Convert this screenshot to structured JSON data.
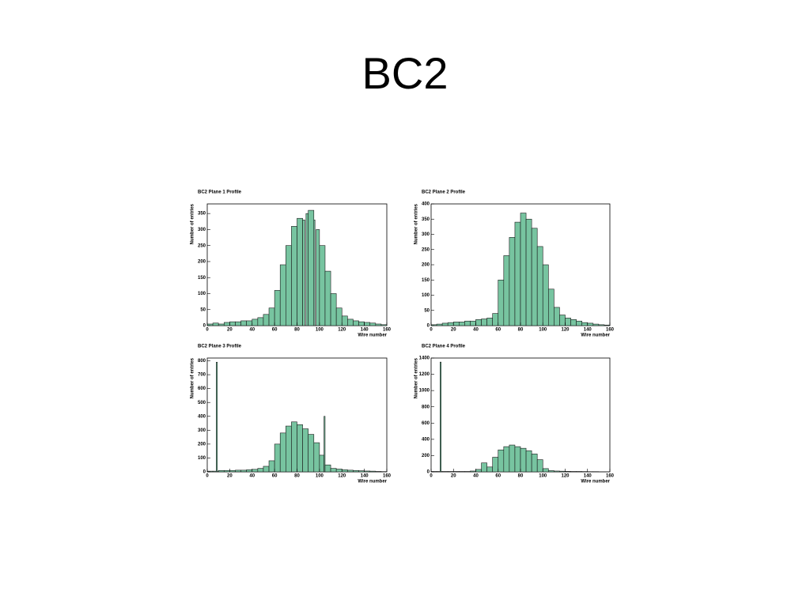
{
  "title": "BC2",
  "chart_data": [
    {
      "type": "histogram",
      "title": "BC2 Plane 1 Profile",
      "x_label": "Wire number",
      "y_label": "Number of entries",
      "color": "#77c4a0",
      "bins": [
        0,
        5,
        10,
        15,
        20,
        25,
        30,
        35,
        40,
        45,
        50,
        55,
        60,
        65,
        70,
        75,
        80,
        85,
        87,
        88,
        90,
        95,
        96,
        97,
        100,
        105,
        110,
        115,
        120,
        125,
        130,
        135,
        140,
        145,
        150,
        155,
        160
      ],
      "values": [
        5,
        8,
        5,
        10,
        12,
        12,
        15,
        15,
        20,
        25,
        35,
        55,
        110,
        190,
        250,
        310,
        335,
        330,
        0,
        350,
        360,
        330,
        0,
        300,
        250,
        170,
        100,
        55,
        30,
        20,
        15,
        12,
        10,
        8,
        5,
        3
      ],
      "xlim": [
        0,
        160
      ],
      "ylim": [
        0,
        380
      ],
      "xticks": [
        0,
        20,
        40,
        60,
        80,
        100,
        120,
        140,
        160
      ],
      "yticks": [
        0,
        50,
        100,
        150,
        200,
        250,
        300,
        350
      ]
    },
    {
      "type": "histogram",
      "title": "BC2 Plane 2 Profile",
      "x_label": "Wire number",
      "y_label": "Number of entries",
      "color": "#77c4a0",
      "bins": [
        0,
        5,
        10,
        15,
        20,
        25,
        30,
        35,
        40,
        45,
        50,
        55,
        60,
        65,
        70,
        75,
        80,
        85,
        90,
        95,
        100,
        105,
        110,
        115,
        120,
        125,
        130,
        135,
        140,
        145,
        150,
        155,
        160
      ],
      "values": [
        3,
        5,
        8,
        10,
        12,
        12,
        15,
        15,
        20,
        22,
        25,
        40,
        150,
        230,
        290,
        340,
        370,
        350,
        320,
        260,
        200,
        120,
        60,
        35,
        25,
        20,
        15,
        10,
        8,
        5,
        3,
        2
      ],
      "xlim": [
        0,
        160
      ],
      "ylim": [
        0,
        400
      ],
      "xticks": [
        0,
        20,
        40,
        60,
        80,
        100,
        120,
        140,
        160
      ],
      "yticks": [
        0,
        50,
        100,
        150,
        200,
        250,
        300,
        350,
        400
      ]
    },
    {
      "type": "histogram",
      "title": "BC2 Plane 3 Profile",
      "x_label": "Wire number",
      "y_label": "Number of entries",
      "color": "#77c4a0",
      "bins": [
        0,
        5,
        8,
        9,
        10,
        15,
        20,
        25,
        30,
        35,
        40,
        45,
        50,
        55,
        60,
        65,
        70,
        75,
        80,
        85,
        90,
        95,
        100,
        104,
        105,
        110,
        115,
        120,
        125,
        130,
        135,
        140,
        145,
        150,
        155,
        160
      ],
      "values": [
        5,
        5,
        790,
        5,
        10,
        10,
        10,
        12,
        12,
        15,
        18,
        25,
        40,
        80,
        200,
        280,
        330,
        360,
        340,
        310,
        270,
        210,
        120,
        400,
        50,
        25,
        20,
        15,
        12,
        10,
        8,
        6,
        5,
        3,
        2
      ],
      "xlim": [
        0,
        160
      ],
      "ylim": [
        0,
        820
      ],
      "xticks": [
        0,
        20,
        40,
        60,
        80,
        100,
        120,
        140,
        160
      ],
      "yticks": [
        0,
        100,
        200,
        300,
        400,
        500,
        600,
        700,
        800
      ]
    },
    {
      "type": "histogram",
      "title": "BC2 Plane 4 Profile",
      "x_label": "Wire number",
      "y_label": "Number of entries",
      "color": "#77c4a0",
      "bins": [
        0,
        5,
        8,
        9,
        10,
        15,
        20,
        25,
        30,
        35,
        40,
        45,
        50,
        55,
        60,
        65,
        70,
        75,
        80,
        85,
        90,
        95,
        100,
        105,
        110,
        115,
        120,
        125,
        130,
        135,
        140,
        145,
        150,
        155,
        160
      ],
      "values": [
        5,
        5,
        1350,
        5,
        5,
        5,
        5,
        5,
        5,
        10,
        30,
        110,
        60,
        180,
        270,
        310,
        330,
        310,
        290,
        260,
        220,
        150,
        40,
        15,
        10,
        8,
        6,
        5,
        5,
        4,
        3,
        3,
        2,
        2
      ],
      "xlim": [
        0,
        160
      ],
      "ylim": [
        0,
        1400
      ],
      "xticks": [
        0,
        20,
        40,
        60,
        80,
        100,
        120,
        140,
        160
      ],
      "yticks": [
        0,
        200,
        400,
        600,
        800,
        1000,
        1200,
        1400
      ]
    }
  ]
}
